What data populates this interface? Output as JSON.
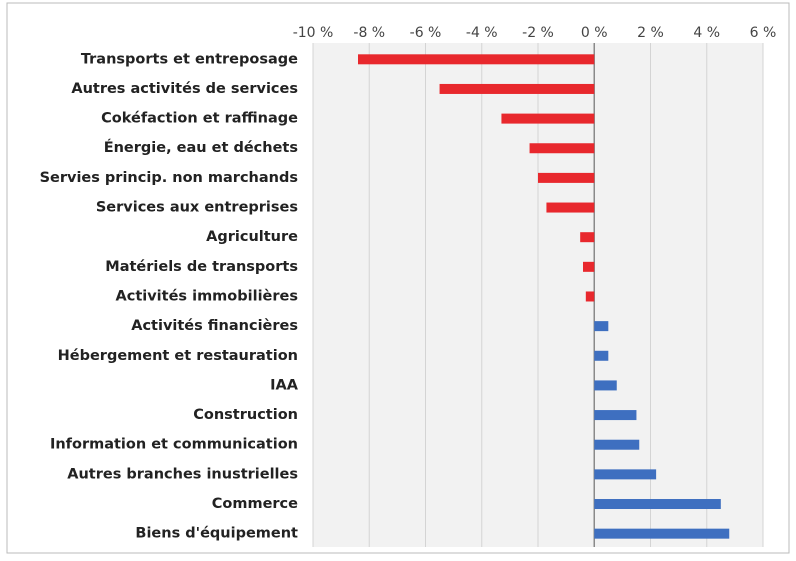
{
  "chart_data": {
    "type": "hbar",
    "categories": [
      "Transports et entreposage",
      "Autres activités de services",
      "Cokéfaction et raffinage",
      "Énergie, eau et déchets",
      "Servies princip. non marchands",
      "Services aux entreprises",
      "Agriculture",
      "Matériels de transports",
      "Activités immobilières",
      "Activités financières",
      "Hébergement et restauration",
      "IAA",
      "Construction",
      "Information et communication",
      "Autres branches inustrielles",
      "Commerce",
      "Biens d'équipement"
    ],
    "values": [
      -8.4,
      -5.5,
      -3.3,
      -2.3,
      -2.0,
      -1.7,
      -0.5,
      -0.4,
      -0.3,
      0.5,
      0.5,
      0.8,
      1.5,
      1.6,
      2.2,
      4.5,
      4.8
    ],
    "colors": [
      "#e8282d",
      "#e8282d",
      "#e8282d",
      "#e8282d",
      "#e8282d",
      "#e8282d",
      "#e8282d",
      "#e8282d",
      "#e8282d",
      "#3e6fc0",
      "#3e6fc0",
      "#3e6fc0",
      "#3e6fc0",
      "#3e6fc0",
      "#3e6fc0",
      "#3e6fc0",
      "#3e6fc0"
    ],
    "xlim": [
      -10,
      6
    ],
    "xticks": [
      {
        "value": -10,
        "label": "-10 %"
      },
      {
        "value": -8,
        "label": "-8 %"
      },
      {
        "value": -6,
        "label": "-6 %"
      },
      {
        "value": -4,
        "label": "-4 %"
      },
      {
        "value": -2,
        "label": "-2 %"
      },
      {
        "value": 0,
        "label": "0 %"
      },
      {
        "value": 2,
        "label": "2 %"
      },
      {
        "value": 4,
        "label": "4 %"
      },
      {
        "value": 6,
        "label": "6 %"
      }
    ],
    "grid": true
  }
}
